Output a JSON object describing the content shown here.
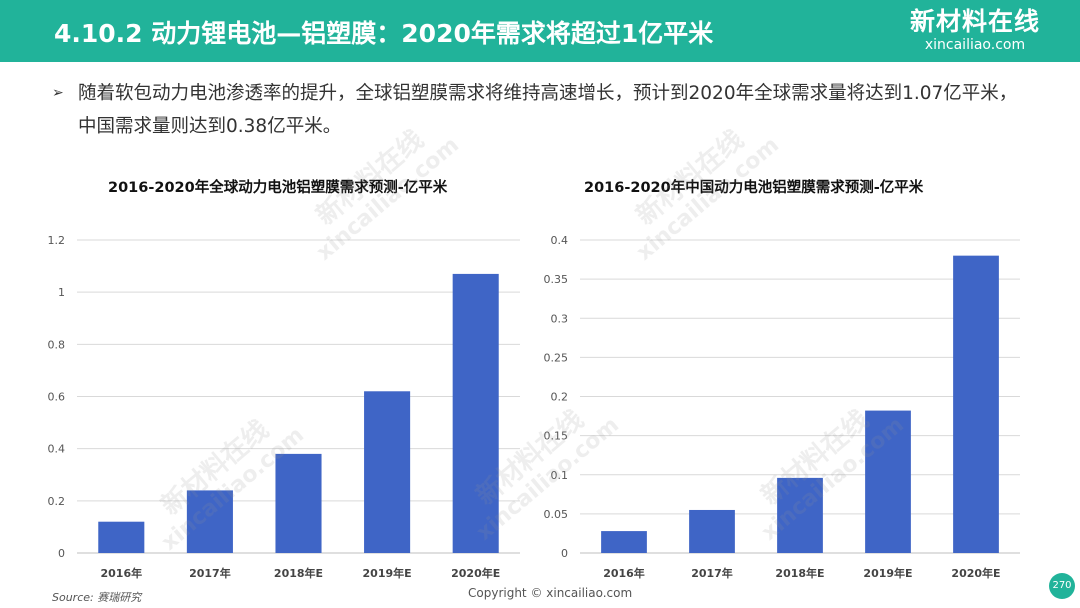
{
  "header": {
    "title": "4.10.2 动力锂电池—铝塑膜：2020年需求将超过1亿平米",
    "logo_cn": "新材料在线",
    "logo_en": "xincailiao.com"
  },
  "bullet": {
    "marker": "➢",
    "text": "随着软包动力电池渗透率的提升，全球铝塑膜需求将维持高速增长，预计到2020年全球需求量将达到1.07亿平米，中国需求量则达到0.38亿平米。"
  },
  "chart_data": [
    {
      "type": "bar",
      "title": "2016-2020年全球动力电池铝塑膜需求预测-亿平米",
      "categories": [
        "2016年",
        "2017年",
        "2018年E",
        "2019年E",
        "2020年E"
      ],
      "values": [
        0.12,
        0.24,
        0.38,
        0.62,
        1.07
      ],
      "ylim": [
        0,
        1.2
      ],
      "yticks": [
        "0",
        "0.2",
        "0.4",
        "0.6",
        "0.8",
        "1",
        "1.2"
      ],
      "grid": true,
      "bar_color": "#3f65c6"
    },
    {
      "type": "bar",
      "title": "2016-2020年中国动力电池铝塑膜需求预测-亿平米",
      "categories": [
        "2016年",
        "2017年",
        "2018年E",
        "2019年E",
        "2020年E"
      ],
      "values": [
        0.028,
        0.055,
        0.096,
        0.182,
        0.38
      ],
      "ylim": [
        0,
        0.4
      ],
      "yticks": [
        "0",
        "0.05",
        "0.1",
        "0.15",
        "0.2",
        "0.25",
        "0.3",
        "0.35",
        "0.4"
      ],
      "grid": true,
      "bar_color": "#3f65c6"
    }
  ],
  "footer": {
    "source": "Source: 赛瑞研究",
    "copyright": "Copyright © xincailiao.com",
    "page": "270"
  },
  "watermark": {
    "cn": "新材料在线",
    "en": "xincailiao.com"
  }
}
